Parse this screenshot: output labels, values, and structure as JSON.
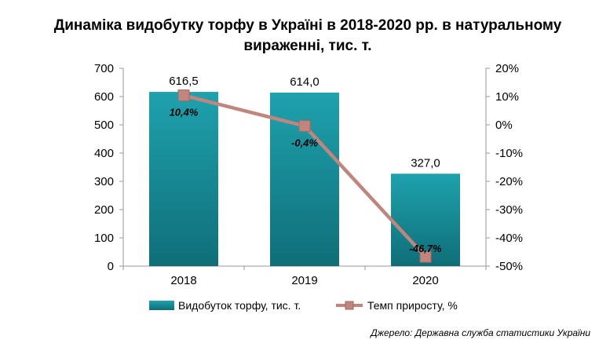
{
  "chart_data": {
    "type": "bar",
    "title": "Динаміка видобутку торфу в Україні в 2018-2020 рр. в натуральному вираженні, тис. т.",
    "title_lines": [
      "Динаміка видобутку торфу в Україні в 2018-2020 рр. в натуральному",
      "вираженні, тис. т."
    ],
    "categories": [
      "2018",
      "2019",
      "2020"
    ],
    "series": [
      {
        "name": "Видобуток торфу, тис. т.",
        "type": "bar",
        "axis": "left",
        "values": [
          616.5,
          614.0,
          327.0
        ],
        "labels": [
          "616,5",
          "614,0",
          "327,0"
        ],
        "color": "#178a94"
      },
      {
        "name": "Темп приросту, %",
        "type": "line",
        "axis": "right",
        "values": [
          10.4,
          -0.4,
          -46.7
        ],
        "labels": [
          "10,4%",
          "-0,4%",
          "-46,7%"
        ],
        "color": "#c0867e"
      }
    ],
    "y_left": {
      "range": [
        0,
        700
      ],
      "ticks": [
        0,
        100,
        200,
        300,
        400,
        500,
        600,
        700
      ],
      "tick_labels": [
        "0",
        "100",
        "200",
        "300",
        "400",
        "500",
        "600",
        "700"
      ]
    },
    "y_right": {
      "range": [
        -50,
        20
      ],
      "ticks": [
        -50,
        -40,
        -30,
        -20,
        -10,
        0,
        10,
        20
      ],
      "tick_labels": [
        "-50%",
        "-40%",
        "-30%",
        "-20%",
        "-10%",
        "0%",
        "10%",
        "20%"
      ]
    },
    "grid": false,
    "legend_position": "bottom",
    "source": "Джерело: Державна служба статистики України"
  }
}
